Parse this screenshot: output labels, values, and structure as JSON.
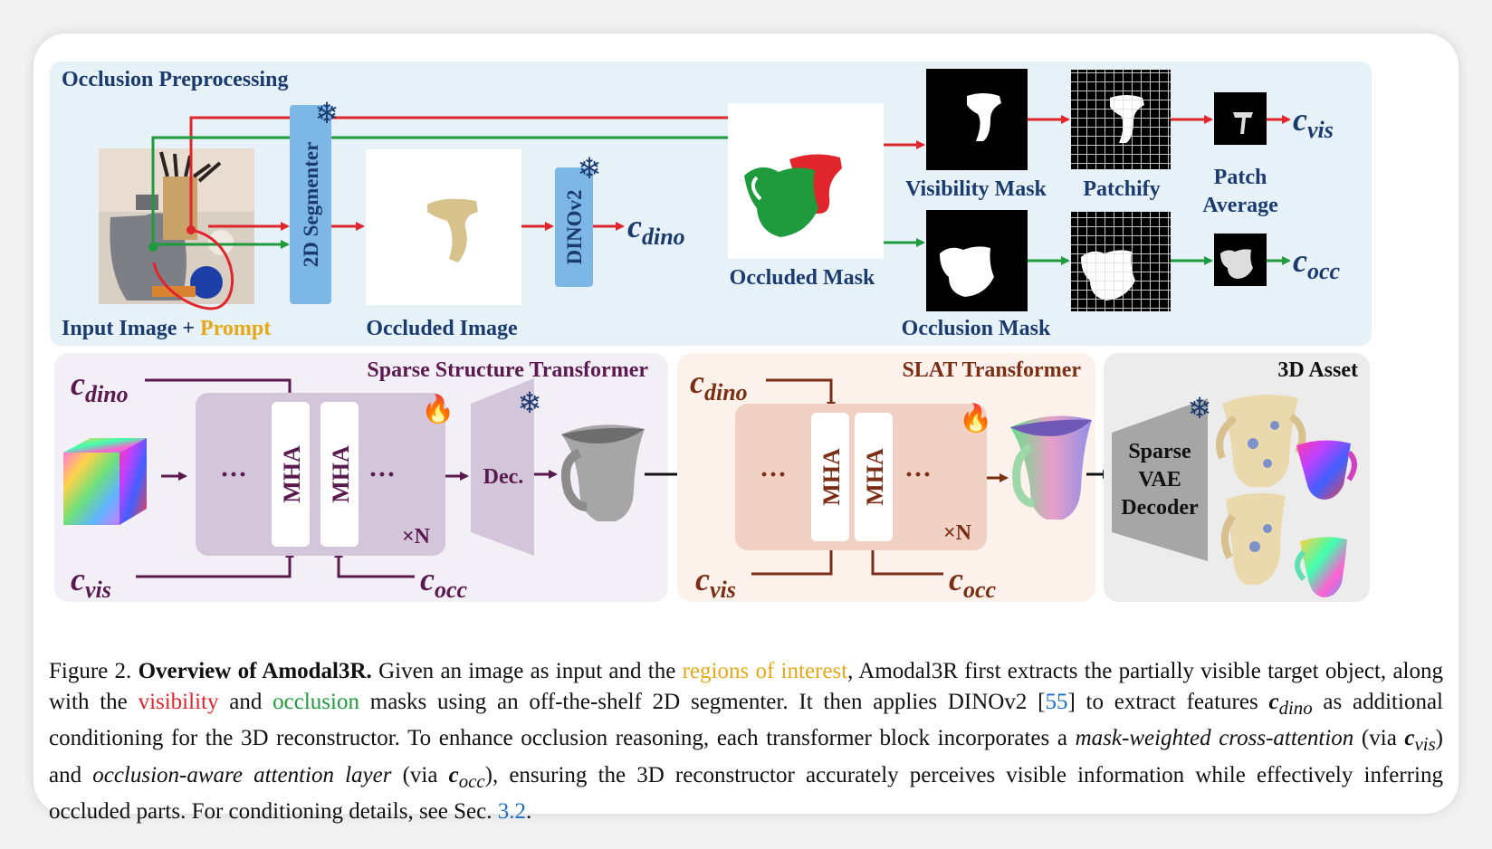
{
  "top_section": {
    "title": "Occlusion Preprocessing",
    "input_label_a": "Input Image + ",
    "input_label_b": "Prompt",
    "segmenter": "2D Segmenter",
    "occluded_image": "Occluded Image",
    "dinov2": "DINOv2",
    "c_dino": "c",
    "c_dino_sub": "dino",
    "occluded_mask": "Occluded Mask",
    "visibility_mask": "Visibility Mask",
    "occlusion_mask": "Occlusion Mask",
    "patchify": "Patchify",
    "patch_average_1": "Patch",
    "patch_average_2": "Average",
    "c_vis_sub": "vis",
    "c_occ_sub": "occ"
  },
  "bottom_section": {
    "sst_title": "Sparse Structure Transformer",
    "slat_title": "SLAT Transformer",
    "asset_title": "3D Asset",
    "mha": "MHA",
    "dots": "···",
    "times_n": "×N",
    "dec": "Dec.",
    "vae_1": "Sparse",
    "vae_2": "VAE",
    "vae_3": "Decoder"
  },
  "caption": {
    "fig": "Figure 2. ",
    "bold_title": "Overview of Amodal3R.",
    "t1": " Given an image as input and the ",
    "roi": "regions of interest",
    "t2": ", Amodal3R first extracts the partially visible target object, along with the ",
    "visibility": "visibility",
    "t3": " and ",
    "occlusion": "occlusion",
    "t4": " masks using an off-the-shelf 2D segmenter. It then applies DINOv2 [",
    "cite55": "55",
    "t5": "] to extract features ",
    "cdino": "c",
    "cdino_sub": "dino",
    "t6": " as additional conditioning for the 3D reconstructor. To enhance occlusion reasoning, each transformer block incorporates a ",
    "mwca": "mask-weighted cross-attention",
    "t7": " (via ",
    "cvis": "c",
    "cvis_sub": "vis",
    "t8": ") and ",
    "oaal": "occlusion-aware attention layer",
    "t9": " (via ",
    "cocc": "c",
    "cocc_sub": "occ",
    "t10": "), ensuring the 3D reconstructor accurately perceives visible information while effectively inferring occluded parts. For conditioning details, see Sec. ",
    "sec": "3.2",
    "t11": "."
  }
}
